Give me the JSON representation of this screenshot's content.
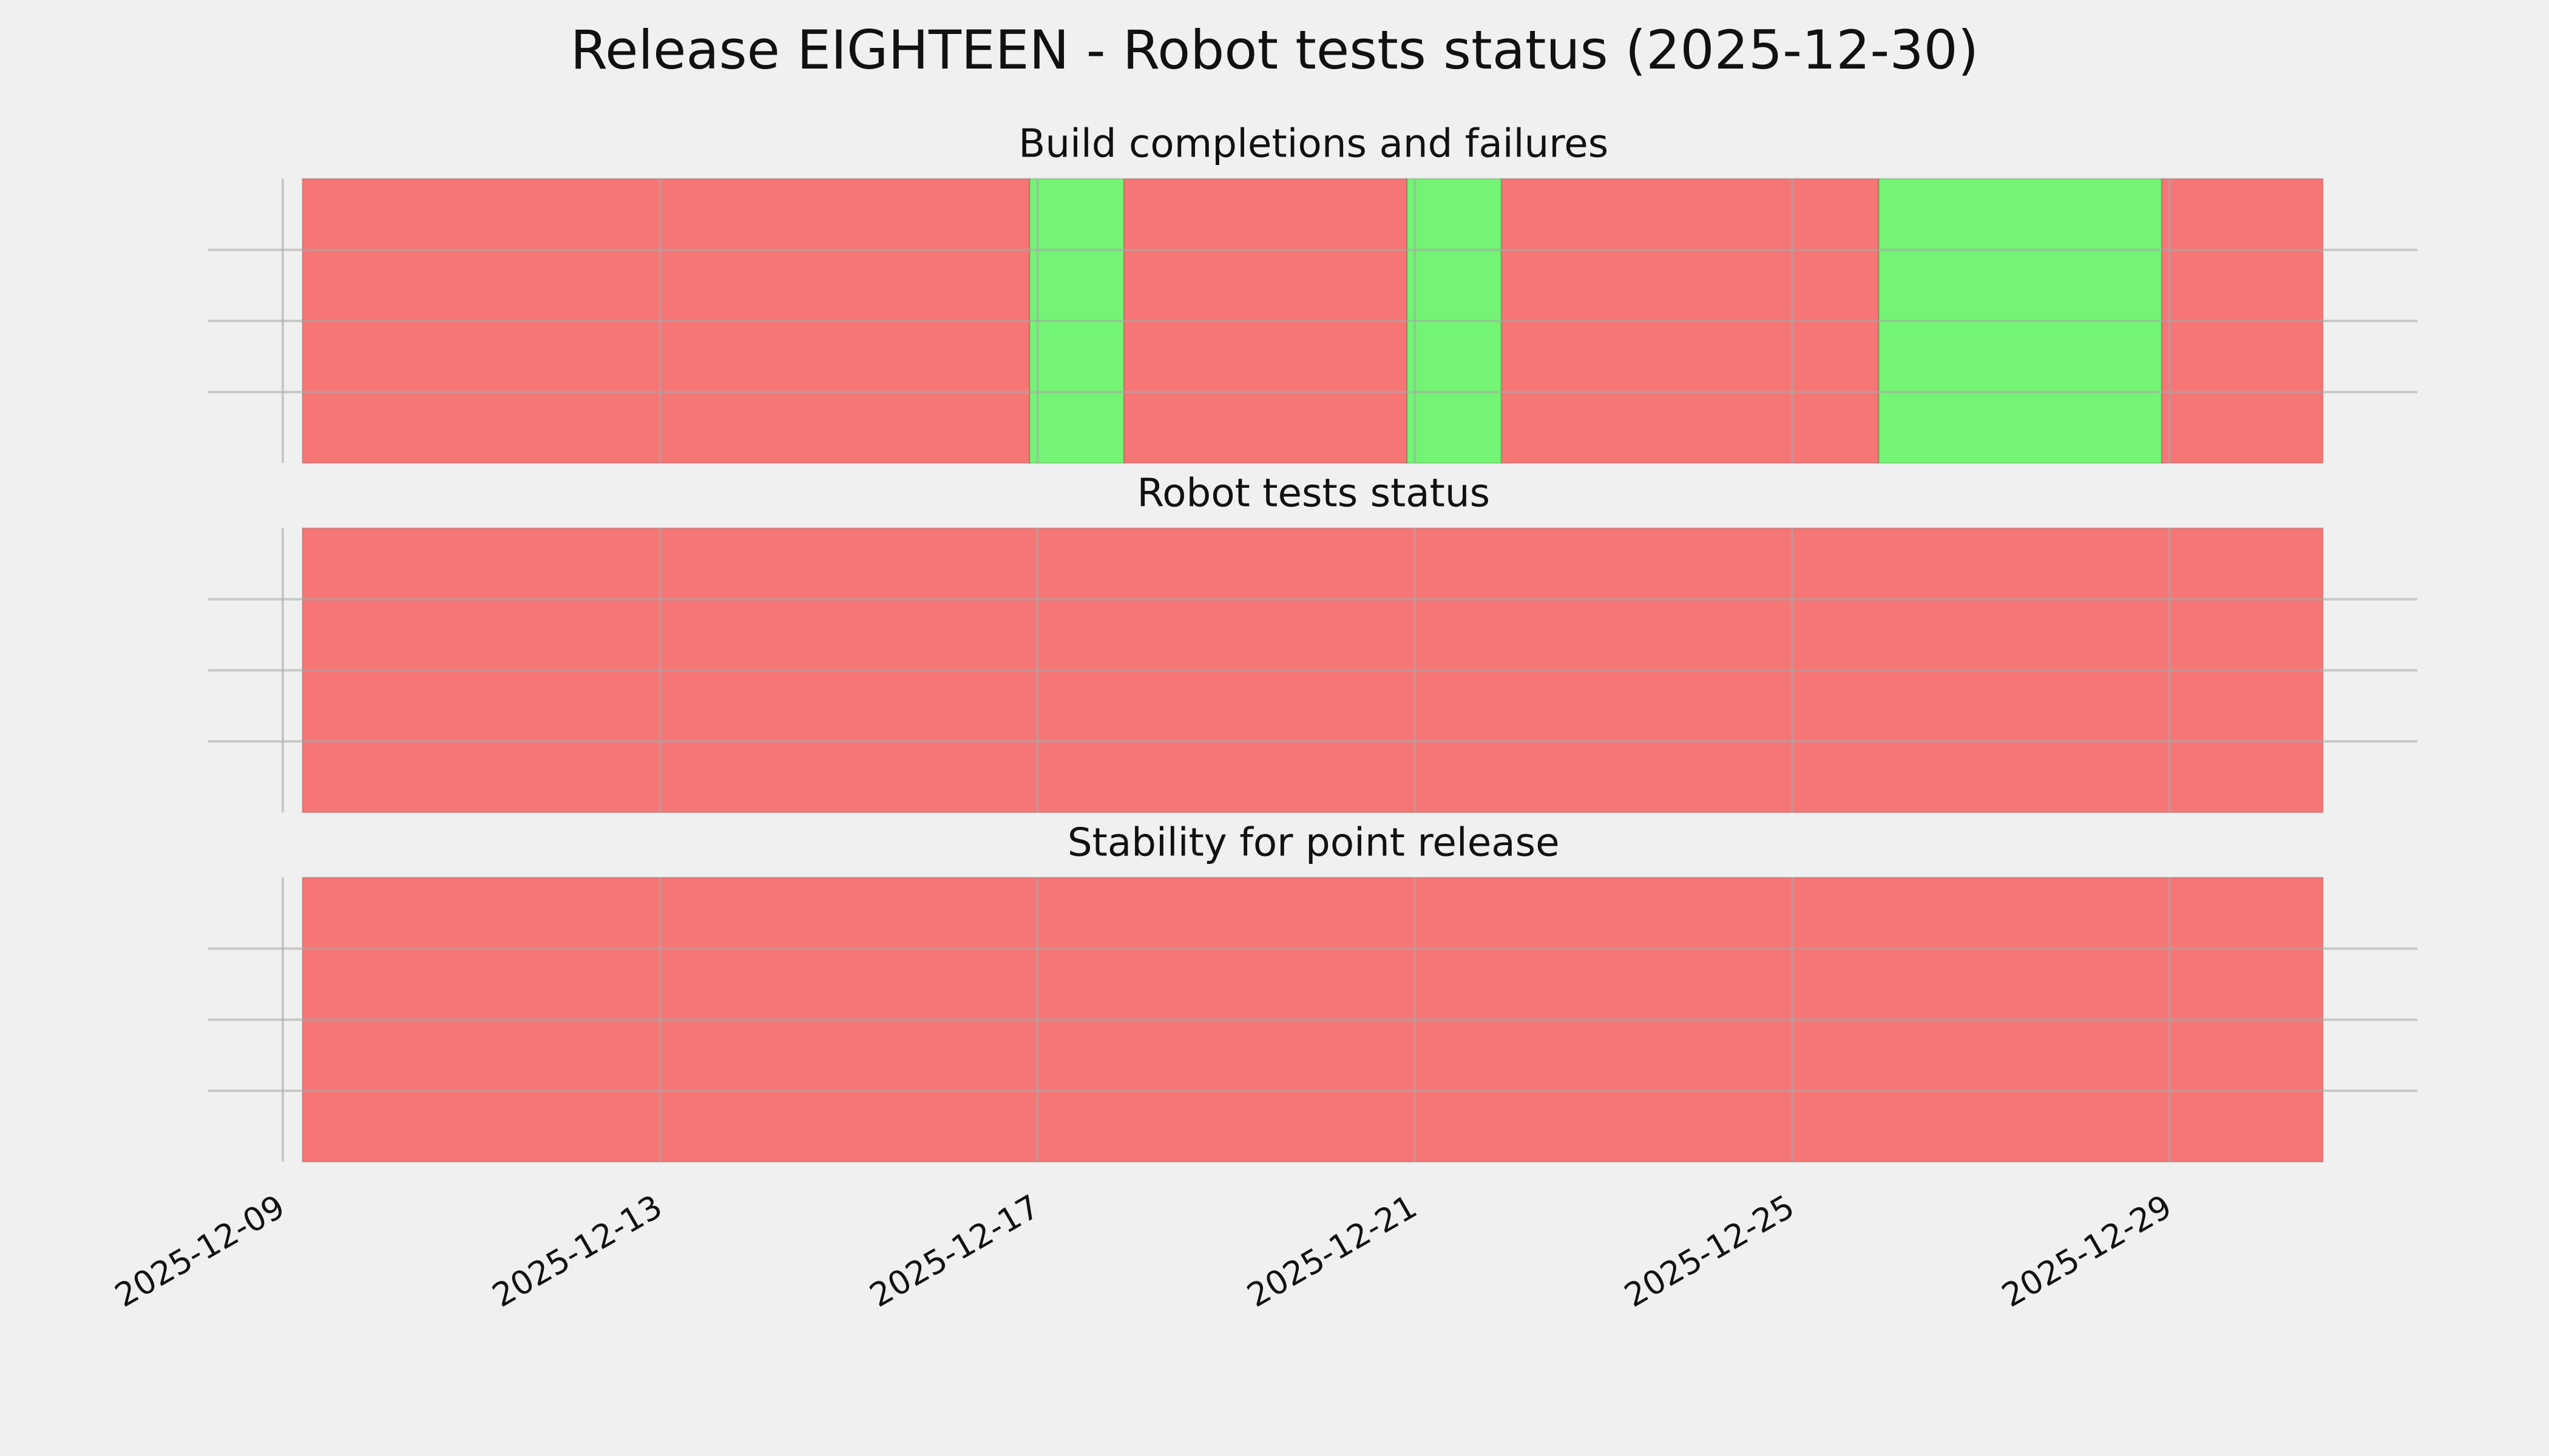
{
  "chart_data": {
    "type": "timeline",
    "title": "Release EIGHTEEN - Robot tests status (2025-12-30)",
    "xlim": [
      "2025-12-08T05:00",
      "2025-12-31T15:00"
    ],
    "xticks": [
      "2025-12-09",
      "2025-12-13",
      "2025-12-17",
      "2025-12-21",
      "2025-12-25",
      "2025-12-29"
    ],
    "ylim": [
      0,
      1
    ],
    "yticks": [
      0.25,
      0.5,
      0.75
    ],
    "grid": true,
    "panels": [
      {
        "title": "Build completions and failures",
        "spans": [
          {
            "start": "2025-12-09T05:00",
            "end": "2025-12-16T22:00",
            "color": "#f67676"
          },
          {
            "start": "2025-12-16T22:00",
            "end": "2025-12-17T22:00",
            "color": "#74f474"
          },
          {
            "start": "2025-12-17T22:00",
            "end": "2025-12-20T22:00",
            "color": "#f67676"
          },
          {
            "start": "2025-12-20T22:00",
            "end": "2025-12-21T22:00",
            "color": "#74f474"
          },
          {
            "start": "2025-12-21T22:00",
            "end": "2025-12-25T22:00",
            "color": "#f67676"
          },
          {
            "start": "2025-12-25T22:00",
            "end": "2025-12-28T22:00",
            "color": "#74f474"
          },
          {
            "start": "2025-12-28T22:00",
            "end": "2025-12-30T15:00",
            "color": "#f67676"
          }
        ]
      },
      {
        "title": "Robot tests status",
        "spans": [
          {
            "start": "2025-12-09T05:00",
            "end": "2025-12-30T15:00",
            "color": "#f67676"
          }
        ]
      },
      {
        "title": "Stability for point release",
        "spans": [
          {
            "start": "2025-12-09T05:00",
            "end": "2025-12-30T15:00",
            "color": "#f67676"
          }
        ]
      }
    ]
  }
}
